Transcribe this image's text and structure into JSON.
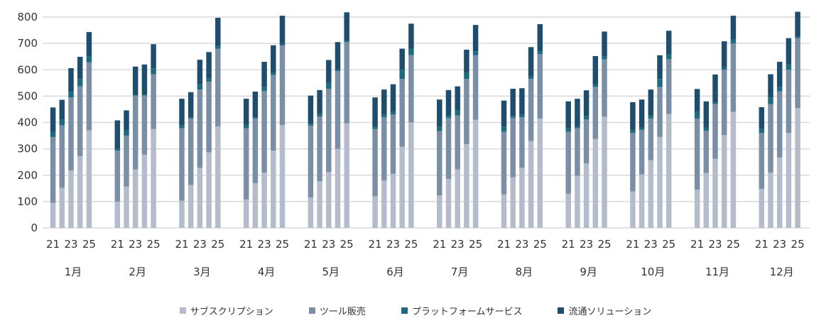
{
  "chart_data": {
    "type": "bar",
    "stacked": true,
    "ylim": [
      0,
      800
    ],
    "yticks": [
      0,
      100,
      200,
      300,
      400,
      500,
      600,
      700,
      800
    ],
    "grid": true,
    "legend_position": "bottom",
    "categories": [
      "1月",
      "2月",
      "3月",
      "4月",
      "5月",
      "6月",
      "7月",
      "8月",
      "9月",
      "10月",
      "11月",
      "12月"
    ],
    "sub_categories": [
      "21",
      "22",
      "23",
      "24",
      "25"
    ],
    "sub_tick_labels": [
      "21",
      "23",
      "25"
    ],
    "series": [
      {
        "name": "サブスクリプション",
        "color": "#b4bccb",
        "values": [
          [
            95,
            152,
            218,
            272,
            370
          ],
          [
            100,
            157,
            222,
            278,
            375
          ],
          [
            103,
            163,
            228,
            287,
            385
          ],
          [
            108,
            170,
            210,
            293,
            390
          ],
          [
            115,
            177,
            212,
            300,
            397
          ],
          [
            120,
            180,
            205,
            308,
            400
          ],
          [
            123,
            186,
            222,
            318,
            410
          ],
          [
            127,
            192,
            228,
            330,
            415
          ],
          [
            130,
            198,
            245,
            338,
            422
          ],
          [
            138,
            203,
            257,
            345,
            432
          ],
          [
            145,
            208,
            262,
            352,
            440
          ],
          [
            148,
            210,
            268,
            360,
            455
          ]
        ]
      },
      {
        "name": "ツール販売",
        "color": "#7a8fa6",
        "values": [
          [
            250,
            237,
            277,
            265,
            258
          ],
          [
            193,
            193,
            280,
            224,
            208
          ],
          [
            275,
            252,
            297,
            268,
            295
          ],
          [
            270,
            245,
            310,
            287,
            302
          ],
          [
            273,
            245,
            316,
            295,
            308
          ],
          [
            255,
            240,
            225,
            257,
            255
          ],
          [
            244,
            231,
            205,
            247,
            245
          ],
          [
            238,
            225,
            192,
            235,
            245
          ],
          [
            235,
            180,
            167,
            197,
            218
          ],
          [
            222,
            169,
            158,
            190,
            208
          ],
          [
            270,
            160,
            208,
            248,
            260
          ],
          [
            212,
            260,
            250,
            240,
            265
          ]
        ]
      },
      {
        "name": "プラットフォームサービス",
        "color": "#1e6b7f",
        "values": [
          [
            20,
            23,
            22,
            28,
            22
          ],
          [
            7,
            20,
            3,
            4,
            22
          ],
          [
            12,
            5,
            20,
            13,
            10
          ],
          [
            14,
            5,
            15,
            10,
            6
          ],
          [
            7,
            10,
            22,
            5,
            5
          ],
          [
            10,
            10,
            10,
            35,
            25
          ],
          [
            18,
            8,
            20,
            25,
            15
          ],
          [
            20,
            8,
            10,
            10,
            10
          ],
          [
            13,
            7,
            13,
            10,
            10
          ],
          [
            10,
            8,
            10,
            30,
            20
          ],
          [
            25,
            12,
            5,
            10,
            15
          ],
          [
            15,
            25,
            17,
            20,
            5
          ]
        ]
      },
      {
        "name": "流通ソリューション",
        "color": "#1e4d6e",
        "values": [
          [
            92,
            74,
            89,
            84,
            93
          ],
          [
            108,
            76,
            107,
            114,
            92
          ],
          [
            100,
            95,
            93,
            99,
            107
          ],
          [
            98,
            97,
            95,
            103,
            107
          ],
          [
            107,
            91,
            87,
            105,
            108
          ],
          [
            110,
            95,
            105,
            80,
            95
          ],
          [
            102,
            98,
            90,
            86,
            100
          ],
          [
            98,
            103,
            100,
            111,
            103
          ],
          [
            102,
            105,
            97,
            107,
            95
          ],
          [
            107,
            107,
            100,
            90,
            88
          ],
          [
            87,
            100,
            107,
            98,
            90
          ],
          [
            83,
            88,
            95,
            100,
            95
          ]
        ]
      }
    ]
  }
}
